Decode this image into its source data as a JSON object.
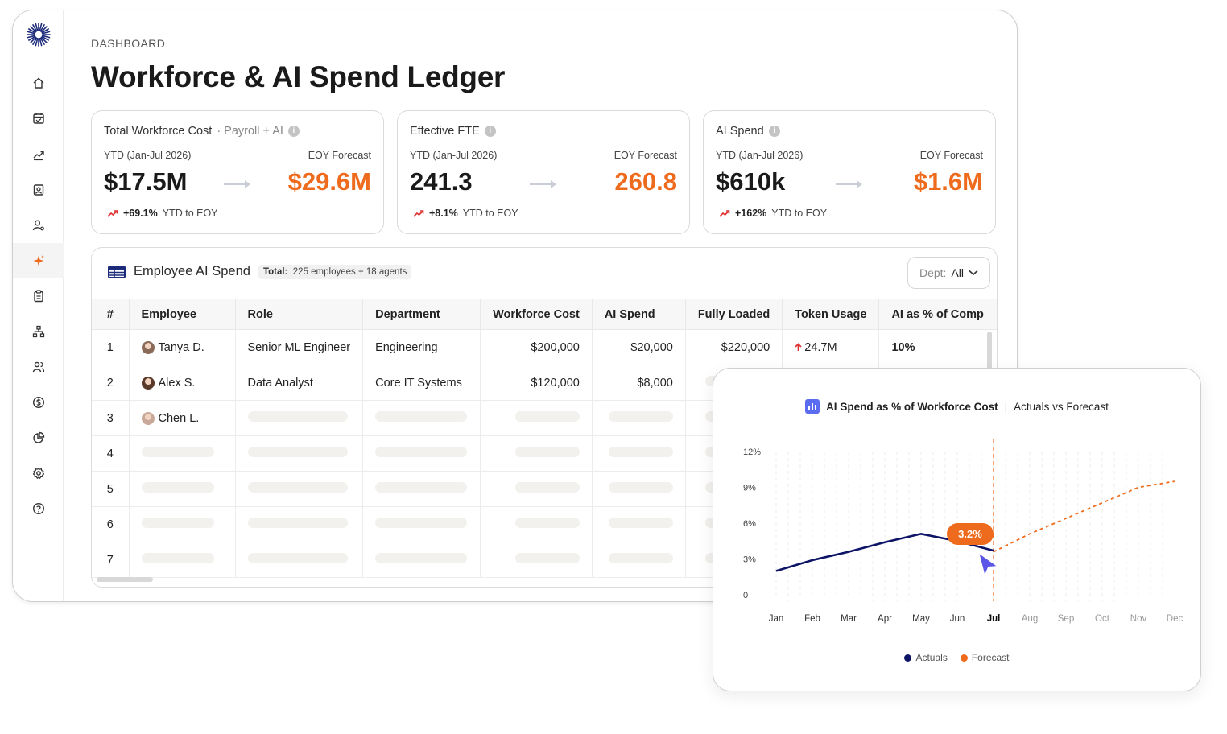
{
  "breadcrumb": "DASHBOARD",
  "page_title": "Workforce & AI Spend Ledger",
  "colors": {
    "accent": "#ee6a1c",
    "navy": "#0d1466",
    "up_red": "#e03131"
  },
  "sidebar": {
    "items": [
      {
        "icon": "home-icon"
      },
      {
        "icon": "calendar-icon"
      },
      {
        "icon": "trending-icon"
      },
      {
        "icon": "id-card-icon"
      },
      {
        "icon": "user-settings-icon"
      },
      {
        "icon": "sparkle-icon",
        "active": true
      },
      {
        "icon": "clipboard-icon"
      },
      {
        "icon": "org-chart-icon"
      },
      {
        "icon": "users-icon"
      },
      {
        "icon": "dollar-icon"
      },
      {
        "icon": "pie-chart-icon"
      },
      {
        "icon": "gear-icon"
      },
      {
        "icon": "help-icon"
      }
    ]
  },
  "cards": [
    {
      "title": "Total Workforce Cost",
      "subtitle": "· Payroll + AI",
      "ytd_label": "YTD (Jan-Jul 2026)",
      "eoy_label": "EOY Forecast",
      "ytd_value": "$17.5M",
      "eoy_value": "$29.6M",
      "delta": "+69.1%",
      "delta_label": "YTD to EOY"
    },
    {
      "title": "Effective FTE",
      "subtitle": "",
      "ytd_label": "YTD (Jan-Jul 2026)",
      "eoy_label": "EOY Forecast",
      "ytd_value": "241.3",
      "eoy_value": "260.8",
      "delta": "+8.1%",
      "delta_label": "YTD to EOY"
    },
    {
      "title": "AI Spend",
      "subtitle": "",
      "ytd_label": "YTD (Jan-Jul 2026)",
      "eoy_label": "EOY Forecast",
      "ytd_value": "$610k",
      "eoy_value": "$1.6M",
      "delta": "+162%",
      "delta_label": "YTD to EOY"
    }
  ],
  "table": {
    "title": "Employee AI Spend",
    "total_label": "Total:",
    "total_value": "225 employees + 18 agents",
    "dept_label": "Dept:",
    "dept_value": "All",
    "columns": [
      "#",
      "Employee",
      "Role",
      "Department",
      "Workforce Cost",
      "AI Spend",
      "Fully Loaded",
      "Token Usage",
      "AI as % of Comp"
    ],
    "rows": [
      {
        "idx": "1",
        "employee": "Tanya D.",
        "role": "Senior ML Engineer",
        "department": "Engineering",
        "workforce_cost": "$200,000",
        "ai_spend": "$20,000",
        "fully_loaded": "$220,000",
        "token_usage": "24.7M",
        "ai_pct": "10%"
      },
      {
        "idx": "2",
        "employee": "Alex S.",
        "role": "Data Analyst",
        "department": "Core IT Systems",
        "workforce_cost": "$120,000",
        "ai_spend": "$8,000"
      },
      {
        "idx": "3",
        "employee": "Chen L."
      },
      {
        "idx": "4"
      },
      {
        "idx": "5"
      },
      {
        "idx": "6"
      },
      {
        "idx": "7"
      }
    ]
  },
  "chart_data": {
    "type": "line",
    "title": "AI Spend as % of Workforce Cost",
    "subtitle": "Actuals vs Forecast",
    "categories": [
      "Jan",
      "Feb",
      "Mar",
      "Apr",
      "May",
      "Jun",
      "Jul",
      "Aug",
      "Sep",
      "Oct",
      "Nov",
      "Dec"
    ],
    "current_month": "Jul",
    "ylim": [
      0,
      12
    ],
    "y_ticks": [
      "0",
      "3%",
      "6%",
      "9%",
      "12%"
    ],
    "series": [
      {
        "name": "Actuals",
        "color": "#0d1466",
        "values": [
          2.0,
          2.9,
          3.6,
          4.4,
          5.1,
          4.5,
          3.7,
          null,
          null,
          null,
          null,
          null
        ]
      },
      {
        "name": "Forecast",
        "color": "#ee6a1c",
        "values": [
          null,
          null,
          null,
          null,
          null,
          null,
          3.6,
          5.1,
          6.4,
          7.7,
          9.0,
          9.5
        ]
      }
    ],
    "callout": "3.2%",
    "legend": "bottom-center"
  }
}
